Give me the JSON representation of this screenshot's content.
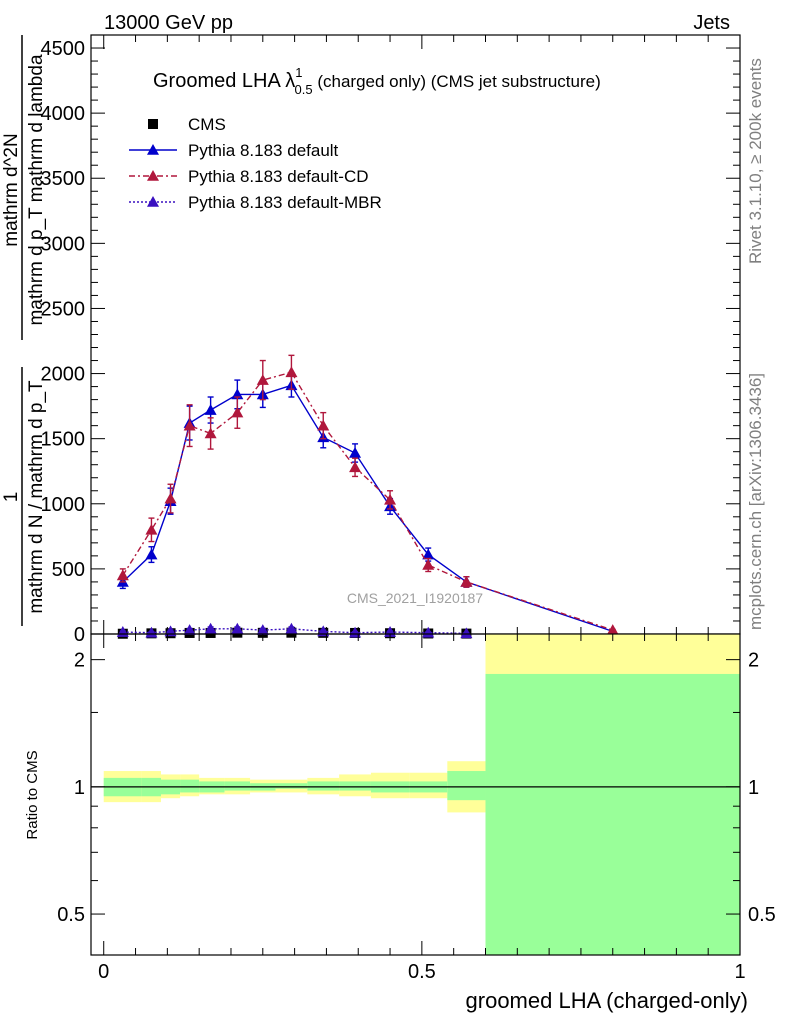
{
  "header": {
    "energy_label": "13000 GeV pp",
    "process_label": "Jets"
  },
  "side_labels": {
    "rivet": "Rivet 3.1.10, ≥ 200k events",
    "mcplots": "mcplots.cern.ch [arXiv:1306.3436]"
  },
  "colors": {
    "cms": "#000000",
    "pythia_default": "#0000cc",
    "pythia_cd": "#b0173c",
    "pythia_mbr": "#3a10c0",
    "band_inner": "#99ff99",
    "band_outer": "#ffff99"
  },
  "chart_data": [
    {
      "type": "line",
      "title_main": "Groomed LHA λ",
      "title_sup": "1",
      "title_sub": "0.5",
      "title_suffix": " (charged only) (CMS jet substructure)",
      "watermark": "CMS_2021_I1920187",
      "ylabel_frac": {
        "numerator": "1",
        "denominator": "mathrm d N / mathrm d p_T",
        "rhs_numerator": "mathrm d^2N",
        "rhs_denominator": "mathrm d p_T mathrm d lambda"
      },
      "yticks": [
        0,
        500,
        1000,
        1500,
        2000,
        2500,
        3000,
        3500,
        4000,
        4500
      ],
      "yticklabels": [
        "0",
        "500",
        "1000",
        "1500",
        "2000",
        "2500",
        "3000",
        "3500",
        "4000",
        "4500"
      ],
      "ylim": [
        0,
        4600
      ],
      "xlim": [
        -0.02,
        1.0
      ],
      "series": [
        {
          "name": "CMS",
          "style": "square",
          "x": [
            0.03,
            0.075,
            0.105,
            0.135,
            0.168,
            0.21,
            0.25,
            0.295,
            0.345,
            0.395,
            0.45,
            0.51,
            0.57
          ],
          "y": [
            2,
            5,
            6,
            8,
            8,
            10,
            9,
            10,
            9,
            8,
            6,
            4,
            3
          ]
        },
        {
          "name": "Pythia 8.183 default",
          "style": "solid",
          "x": [
            0.03,
            0.075,
            0.105,
            0.135,
            0.168,
            0.21,
            0.25,
            0.295,
            0.345,
            0.395,
            0.45,
            0.51,
            0.57,
            0.8
          ],
          "y": [
            400,
            610,
            1020,
            1620,
            1720,
            1840,
            1840,
            1910,
            1510,
            1390,
            980,
            610,
            400,
            20
          ],
          "err": [
            50,
            60,
            100,
            130,
            100,
            110,
            100,
            90,
            80,
            70,
            60,
            50,
            40,
            5
          ]
        },
        {
          "name": "Pythia 8.183 default-CD",
          "style": "dashdot",
          "x": [
            0.03,
            0.075,
            0.105,
            0.135,
            0.168,
            0.21,
            0.25,
            0.295,
            0.345,
            0.395,
            0.45,
            0.51,
            0.57,
            0.8
          ],
          "y": [
            450,
            800,
            1040,
            1600,
            1540,
            1700,
            1950,
            2010,
            1600,
            1280,
            1030,
            530,
            400,
            30
          ],
          "err": [
            50,
            90,
            110,
            160,
            120,
            120,
            150,
            130,
            100,
            70,
            70,
            50,
            40,
            5
          ]
        },
        {
          "name": "Pythia 8.183 default-MBR",
          "style": "dotted",
          "x": [
            0.03,
            0.075,
            0.105,
            0.135,
            0.168,
            0.21,
            0.25,
            0.295,
            0.345,
            0.395,
            0.45,
            0.51,
            0.57
          ],
          "y": [
            15,
            10,
            20,
            30,
            40,
            40,
            30,
            40,
            20,
            10,
            15,
            10,
            5
          ],
          "err": [
            8,
            8,
            10,
            12,
            14,
            14,
            12,
            14,
            10,
            8,
            8,
            6,
            4
          ]
        }
      ]
    },
    {
      "type": "area",
      "ylabel": "Ratio to CMS",
      "xlabel": "groomed LHA (charged-only)",
      "xticks": [
        0,
        0.5,
        1
      ],
      "xticklabels": [
        "0",
        "0.5",
        "1"
      ],
      "yscale": "log",
      "ylim": [
        0.4,
        2.3
      ],
      "yticks": [
        0.5,
        1,
        2
      ],
      "yticklabels": [
        "0.5",
        "1",
        "2"
      ],
      "bins": [
        0.0,
        0.06,
        0.09,
        0.12,
        0.15,
        0.19,
        0.23,
        0.27,
        0.32,
        0.37,
        0.42,
        0.48,
        0.54,
        0.6,
        1.0
      ],
      "band_inner": {
        "lo": [
          0.95,
          0.95,
          0.96,
          0.97,
          0.97,
          0.98,
          0.98,
          0.99,
          0.98,
          0.98,
          0.97,
          0.97,
          0.93,
          0.3
        ],
        "hi": [
          1.05,
          1.05,
          1.04,
          1.04,
          1.03,
          1.03,
          1.02,
          1.02,
          1.03,
          1.03,
          1.03,
          1.03,
          1.09,
          1.85
        ]
      },
      "band_outer": {
        "lo": [
          0.92,
          0.92,
          0.94,
          0.95,
          0.96,
          0.96,
          0.97,
          0.97,
          0.96,
          0.95,
          0.94,
          0.94,
          0.87,
          0.3
        ],
        "hi": [
          1.09,
          1.09,
          1.07,
          1.07,
          1.05,
          1.05,
          1.04,
          1.04,
          1.05,
          1.07,
          1.08,
          1.08,
          1.15,
          2.3
        ]
      },
      "reference_line": 1
    }
  ]
}
